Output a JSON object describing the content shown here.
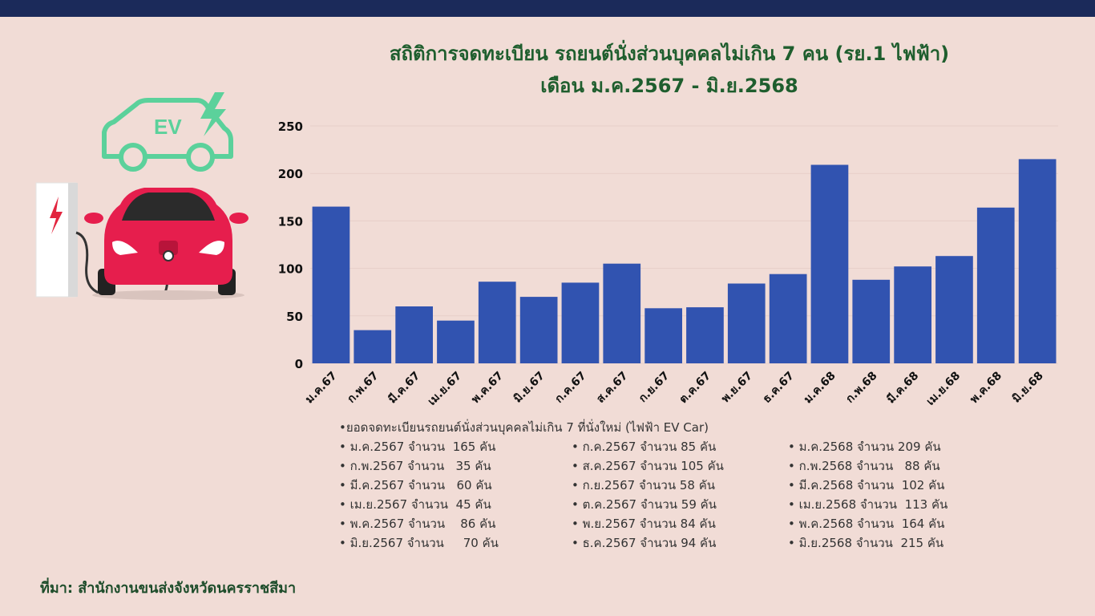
{
  "title_line1": "สถิติการจดทะเบียน รถยนต์นั่งส่วนบุคคลไม่เกิน 7 คน (รย.1 ไฟฟ้า)",
  "title_line2": "เดือน ม.ค.2567 - มิ.ย.2568",
  "illustration": {
    "badge_text": "EV",
    "icons": [
      "ev-car-outline-icon",
      "lightning-bolt-icon",
      "charging-station-icon",
      "red-car-icon"
    ]
  },
  "colors": {
    "bar": "#3153b0",
    "title": "#1f5e2e",
    "topbar": "#1b2a5a",
    "background": "#f1dcd6"
  },
  "chart_data": {
    "type": "bar",
    "categories": [
      "ม.ค.67",
      "ก.พ.67",
      "มี.ค.67",
      "เม.ย.67",
      "พ.ค.67",
      "มิ.ย.67",
      "ก.ค.67",
      "ส.ค.67",
      "ก.ย.67",
      "ต.ค.67",
      "พ.ย.67",
      "ธ.ค.67",
      "ม.ค.68",
      "ก.พ.68",
      "มี.ค.68",
      "เม.ย.68",
      "พ.ค.68",
      "มิ.ย.68"
    ],
    "values": [
      165,
      35,
      60,
      45,
      86,
      70,
      85,
      105,
      58,
      59,
      84,
      94,
      209,
      88,
      102,
      113,
      164,
      215
    ],
    "ylim": [
      0,
      250
    ],
    "yticks": [
      "0",
      "50",
      "100",
      "150",
      "200",
      "250"
    ],
    "grid": true
  },
  "notes": {
    "heading": "•ยอดจดทะเบียนรถยนต์นั่งส่วนบุคคลไม่เกิน 7 ที่นั่งใหม่ (ไฟฟ้า EV Car)",
    "col1": [
      "• ม.ค.2567 จำนวน  165 คัน",
      "• ก.พ.2567 จำนวน   35 คัน",
      "• มี.ค.2567 จำนวน   60 คัน",
      "• เม.ย.2567 จำนวน  45 คัน",
      "• พ.ค.2567 จำนวน    86 คัน",
      "• มิ.ย.2567 จำนวน     70 คัน"
    ],
    "col2": [
      "• ก.ค.2567 จำนวน 85 คัน",
      "• ส.ค.2567 จำนวน 105 คัน",
      "• ก.ย.2567 จำนวน 58 คัน",
      "• ต.ค.2567 จำนวน 59 คัน",
      "• พ.ย.2567 จำนวน 84 คัน",
      "• ธ.ค.2567 จำนวน 94 คัน"
    ],
    "col3": [
      "• ม.ค.2568 จำนวน 209 คัน",
      "• ก.พ.2568 จำนวน   88 คัน",
      "• มี.ค.2568 จำนวน  102 คัน",
      "• เม.ย.2568 จำนวน  113 คัน",
      "• พ.ค.2568 จำนวน  164 คัน",
      "• มิ.ย.2568 จำนวน  215 คัน"
    ]
  },
  "source": "ที่มา: สำนักงานขนส่งจังหวัดนครราชสีมา"
}
